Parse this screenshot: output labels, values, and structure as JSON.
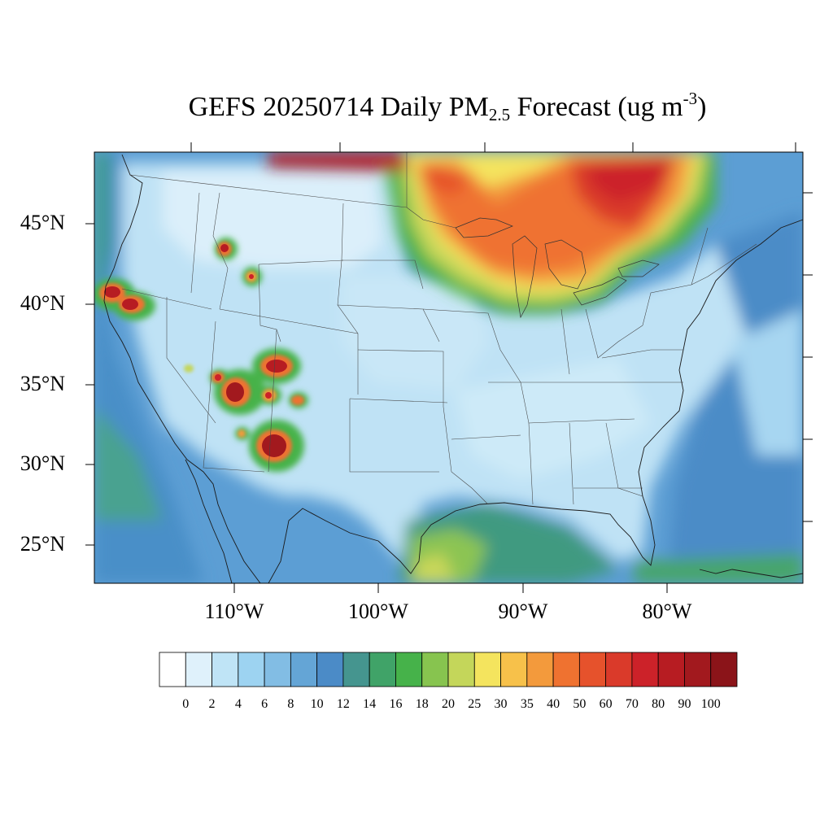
{
  "title": {
    "main": "GEFS 20250714 Daily PM",
    "subscript": "2.5",
    "middle": " Forecast (ug m",
    "superscript": "-3",
    "end": ")"
  },
  "lat_labels": [
    "45°N",
    "40°N",
    "35°N",
    "30°N",
    "25°N"
  ],
  "lon_labels": [
    "110°W",
    "100°W",
    "90°W",
    "80°W"
  ],
  "colorbar": {
    "labels": [
      "0",
      "2",
      "4",
      "6",
      "8",
      "10",
      "12",
      "14",
      "16",
      "18",
      "20",
      "25",
      "30",
      "35",
      "40",
      "50",
      "60",
      "70",
      "80",
      "90",
      "100"
    ],
    "colors": [
      "#ffffff",
      "#dff1fb",
      "#bfe4f6",
      "#9dd3f1",
      "#82bde4",
      "#64a5d6",
      "#4b8bc7",
      "#45958f",
      "#40a368",
      "#46b24a",
      "#87c44f",
      "#c4d65a",
      "#f4e45e",
      "#f7c14a",
      "#f39a3c",
      "#ef7230",
      "#e6522c",
      "#da3a2a",
      "#cc2229",
      "#b71c22",
      "#a2191e",
      "#8b1419"
    ]
  },
  "map": {
    "projection": "Lambert Conformal",
    "region": "Contiguous United States",
    "variable": "Daily PM2.5",
    "hotspots": [
      {
        "name": "Canadian wildfire smoke plume",
        "level": "60-100"
      },
      {
        "name": "Northern California fires",
        "level": "90-100"
      },
      {
        "name": "Arizona/New Mexico fires",
        "level": "90-100"
      },
      {
        "name": "Idaho fires",
        "level": "70-100"
      }
    ]
  }
}
